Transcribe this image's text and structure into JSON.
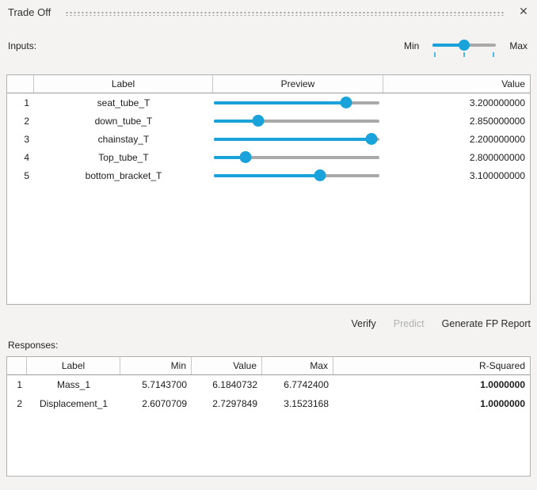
{
  "panel": {
    "title": "Trade Off",
    "close_icon": "✕"
  },
  "colors": {
    "accent_blue": "#1aa3db",
    "tick_blue": "#4ab9e8",
    "slider_track_gray": "#a9a9a9",
    "disabled_text": "#b3b3b3",
    "background": "#f4f3f2"
  },
  "inputs": {
    "label": "Inputs:",
    "range_slider": {
      "min_label": "Min",
      "max_label": "Max",
      "percent": 50
    },
    "table": {
      "columns": [
        "",
        "Label",
        "Preview",
        "Value"
      ],
      "rows": [
        {
          "num": "1",
          "label": "seat_tube_T",
          "slider_percent": 80,
          "value": "3.200000000"
        },
        {
          "num": "2",
          "label": "down_tube_T",
          "slider_percent": 27,
          "value": "2.850000000"
        },
        {
          "num": "3",
          "label": "chainstay_T",
          "slider_percent": 95,
          "value": "2.200000000"
        },
        {
          "num": "4",
          "label": "Top_tube_T",
          "slider_percent": 19,
          "value": "2.800000000"
        },
        {
          "num": "5",
          "label": "bottom_bracket_T",
          "slider_percent": 64,
          "value": "3.100000000"
        }
      ]
    }
  },
  "actions": {
    "verify_label": "Verify",
    "predict_label": "Predict",
    "report_label": "Generate FP Report"
  },
  "responses": {
    "label": "Responses:",
    "table": {
      "columns": [
        "",
        "Label",
        "Min",
        "Value",
        "Max",
        "R-Squared"
      ],
      "rows": [
        {
          "num": "1",
          "label": "Mass_1",
          "min": "5.7143700",
          "value": "6.1840732",
          "max": "6.7742400",
          "r_squared": "1.0000000"
        },
        {
          "num": "2",
          "label": "Displacement_1",
          "min": "2.6070709",
          "value": "2.7297849",
          "max": "3.1523168",
          "r_squared": "1.0000000"
        }
      ]
    }
  }
}
